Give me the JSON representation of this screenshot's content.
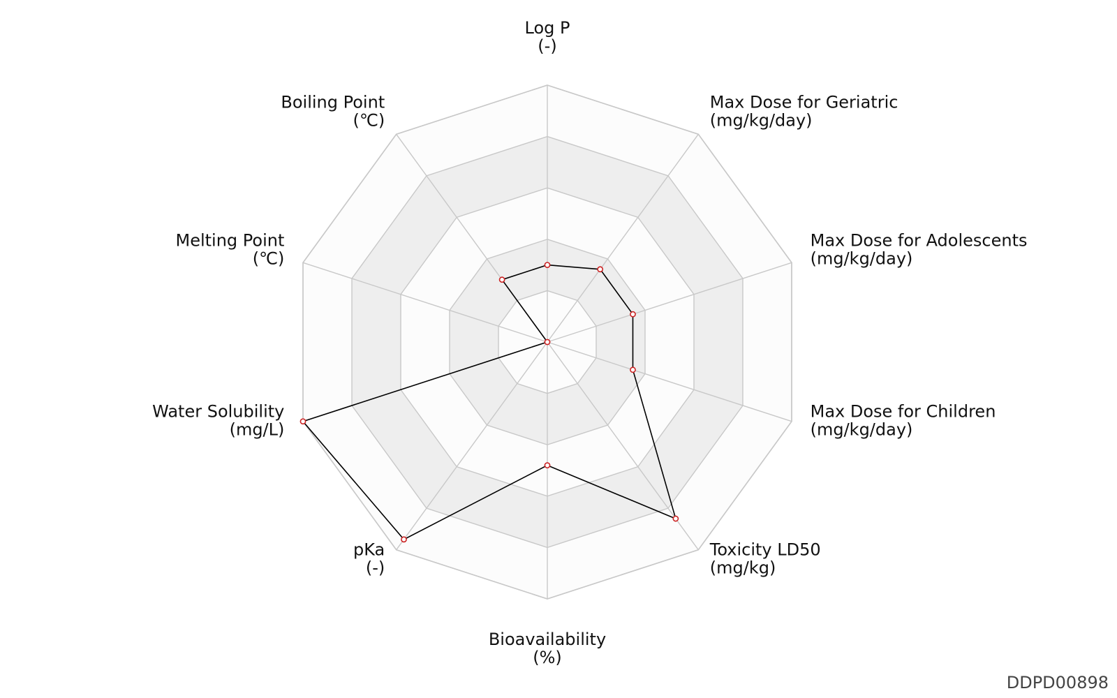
{
  "chart_data": {
    "type": "radar",
    "axes": [
      {
        "name": "Log P",
        "unit": "(-)"
      },
      {
        "name": "Max Dose for Geriatric",
        "unit": "(mg/kg/day)"
      },
      {
        "name": "Max Dose for Adolescents",
        "unit": "(mg/kg/day)"
      },
      {
        "name": "Max Dose for Children",
        "unit": "(mg/kg/day)"
      },
      {
        "name": "Toxicity LD50",
        "unit": "(mg/kg)"
      },
      {
        "name": "Bioavailability",
        "unit": "(%)"
      },
      {
        "name": "pKa",
        "unit": "(-)"
      },
      {
        "name": "Water Solubility",
        "unit": "(mg/L)"
      },
      {
        "name": "Melting Point",
        "unit": "(℃)"
      },
      {
        "name": "Boiling Point",
        "unit": "(℃)"
      }
    ],
    "values": [
      0.3,
      0.35,
      0.35,
      0.35,
      0.85,
      0.48,
      0.95,
      1.0,
      0.0,
      0.3
    ],
    "range": [
      0,
      1
    ],
    "rings": 5,
    "alternate_band_fill": true,
    "colors": {
      "line": "#000000",
      "marker_edge": "#cc2222",
      "marker_fill": "#ffffff",
      "grid": "#c8c8c8",
      "band_light": "#fcfcfc",
      "band_dark": "#eeeeee"
    }
  },
  "footer": {
    "id": "DDPD00898"
  }
}
